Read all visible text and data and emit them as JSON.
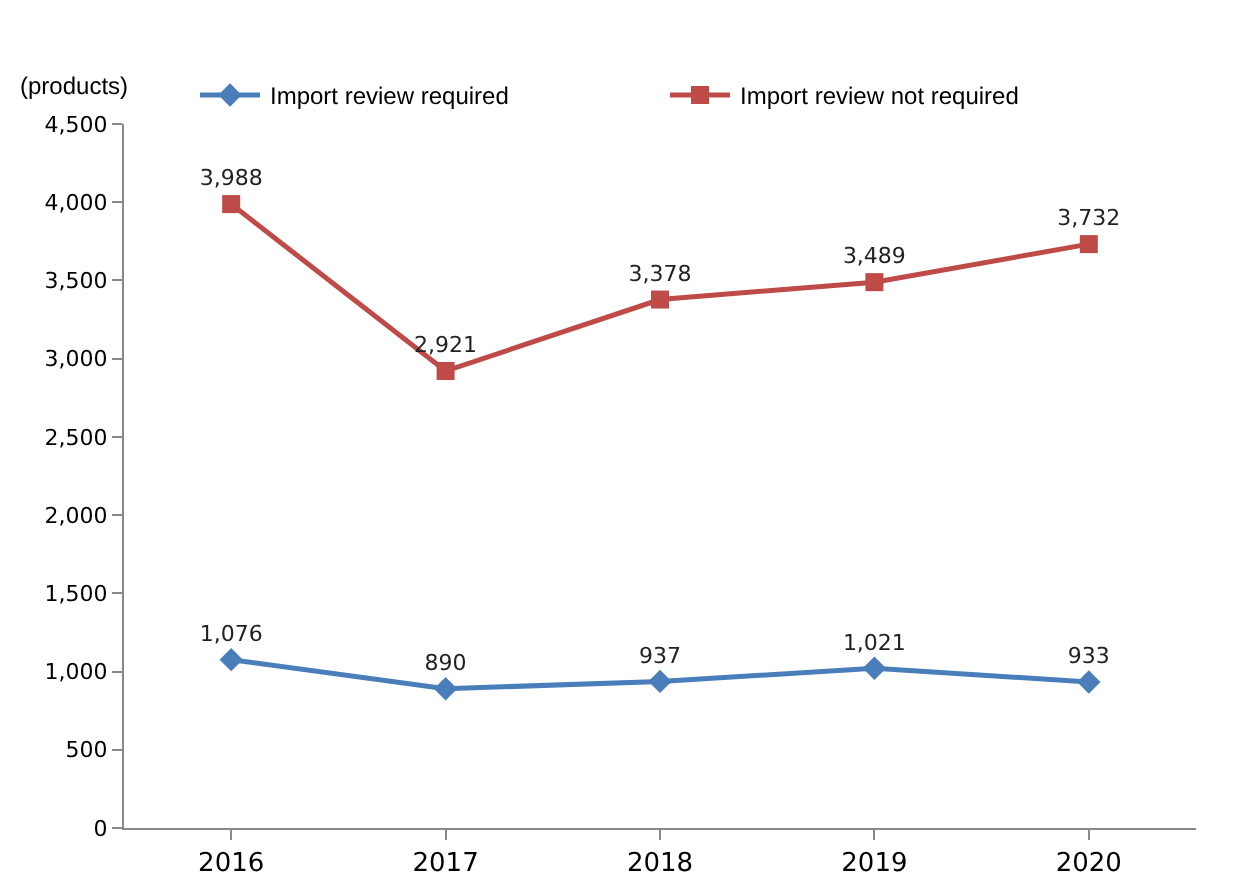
{
  "chart_data": {
    "type": "line",
    "ylabel": "(products)",
    "categories": [
      "2016",
      "2017",
      "2018",
      "2019",
      "2020"
    ],
    "series": [
      {
        "name": "Import review required",
        "color": "#4a7ebb",
        "marker": "diamond",
        "values": [
          1076,
          890,
          937,
          1021,
          933
        ],
        "value_labels": [
          "1,076",
          "890",
          "937",
          "1,021",
          "933"
        ]
      },
      {
        "name": "Import review not required",
        "color": "#be4b48",
        "marker": "square",
        "values": [
          3988,
          2921,
          3378,
          3489,
          3732
        ],
        "value_labels": [
          "3,988",
          "2,921",
          "3,378",
          "3,489",
          "3,732"
        ]
      }
    ],
    "ylim": [
      0,
      4500
    ],
    "yticks": [
      0,
      500,
      {
        "value": 1000,
        "label": "1,000"
      },
      {
        "value": 1500,
        "label": "1,500"
      },
      {
        "value": 2000,
        "label": "2,000"
      },
      {
        "value": 2500,
        "label": "2,500"
      },
      {
        "value": 3000,
        "label": "3,000"
      },
      {
        "value": 3500,
        "label": "3,500"
      },
      {
        "value": 4000,
        "label": "4,000"
      },
      {
        "value": 4500,
        "label": "4,500"
      }
    ],
    "grid": false,
    "legend": "top",
    "line_style": "solid"
  }
}
